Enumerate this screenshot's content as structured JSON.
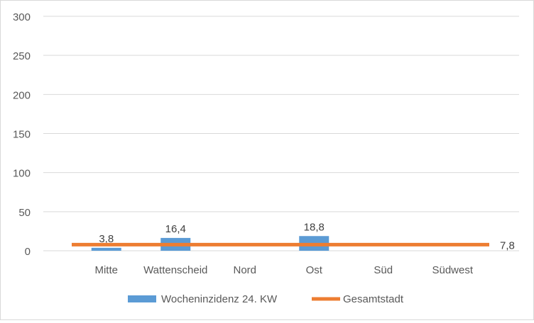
{
  "chart_data": {
    "type": "bar",
    "categories": [
      "Mitte",
      "Wattenscheid",
      "Nord",
      "Ost",
      "Süd",
      "Südwest"
    ],
    "series": [
      {
        "name": "Wocheninzidenz 24. KW",
        "type": "bar",
        "values": [
          3.8,
          16.4,
          0,
          18.8,
          0,
          0
        ],
        "labels": [
          "3,8",
          "16,4",
          "",
          "18,8",
          "",
          ""
        ]
      },
      {
        "name": "Gesamtstadt",
        "type": "line",
        "value": 7.8,
        "label": "7,8"
      }
    ],
    "ylim": [
      0,
      300
    ],
    "yticks": [
      {
        "value": 0,
        "label": "0"
      },
      {
        "value": 50,
        "label": "50"
      },
      {
        "value": 100,
        "label": "100"
      },
      {
        "value": 150,
        "label": "150"
      },
      {
        "value": 200,
        "label": "200"
      },
      {
        "value": 250,
        "label": "250"
      },
      {
        "value": 300,
        "label": "300"
      }
    ],
    "grid": true,
    "legend_position": "bottom",
    "colors": {
      "bar": "#5b9bd5",
      "line": "#ed7d31",
      "grid": "#d9d9d9",
      "text": "#595959",
      "label": "#404040"
    }
  }
}
